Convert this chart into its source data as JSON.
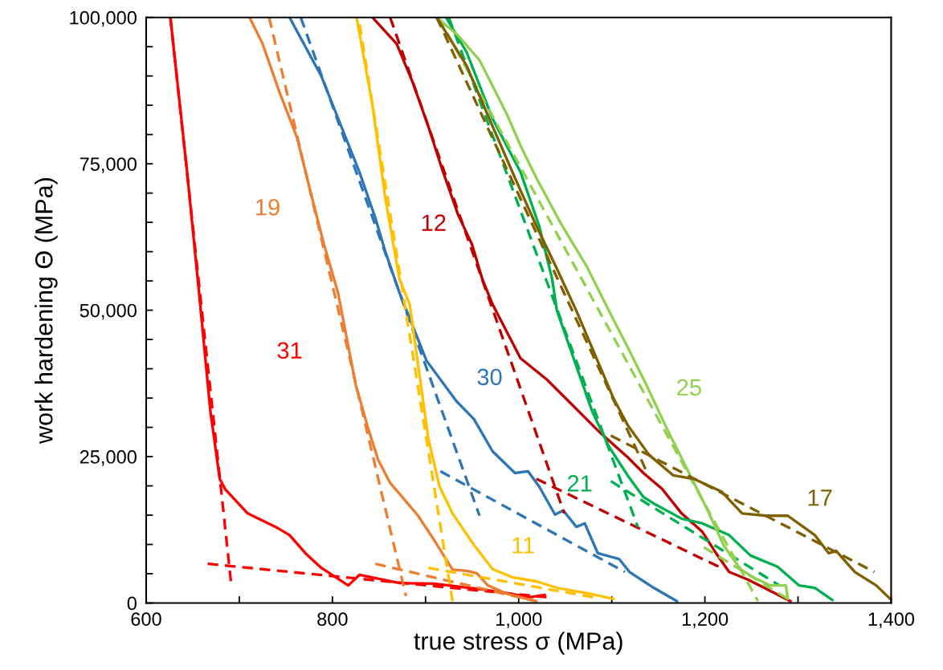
{
  "chart_data": {
    "type": "line",
    "xlabel": "true stress σ (MPa)",
    "ylabel": "work hardening Θ (MPa)",
    "xlim": [
      600,
      1400
    ],
    "ylim": [
      0,
      100000
    ],
    "xticks": [
      600,
      {
        "value": 700,
        "label": null
      },
      800,
      {
        "value": 900,
        "label": null
      },
      {
        "value": 1000,
        "label": "1,000"
      },
      {
        "value": 1100,
        "label": null
      },
      {
        "value": 1200,
        "label": "1,200"
      },
      {
        "value": 1300,
        "label": null
      },
      {
        "value": 1400,
        "label": "1,400"
      }
    ],
    "yticks": [
      0,
      {
        "value": 5000,
        "label": null
      },
      {
        "value": 10000,
        "label": null
      },
      {
        "value": 15000,
        "label": null
      },
      {
        "value": 20000,
        "label": null
      },
      {
        "value": 25000,
        "label": "25,000"
      },
      {
        "value": 30000,
        "label": null
      },
      {
        "value": 35000,
        "label": null
      },
      {
        "value": 40000,
        "label": null
      },
      {
        "value": 45000,
        "label": null
      },
      {
        "value": 50000,
        "label": "50,000"
      },
      {
        "value": 55000,
        "label": null
      },
      {
        "value": 60000,
        "label": null
      },
      {
        "value": 65000,
        "label": null
      },
      {
        "value": 70000,
        "label": null
      },
      {
        "value": 75000,
        "label": "75,000"
      },
      {
        "value": 80000,
        "label": null
      },
      {
        "value": 85000,
        "label": null
      },
      {
        "value": 90000,
        "label": null
      },
      {
        "value": 95000,
        "label": null
      },
      {
        "value": 100000,
        "label": "100,000"
      }
    ],
    "grid": false,
    "marker": "none",
    "series": [
      {
        "name": "31",
        "color": "#ff0000",
        "line_style": "solid",
        "x": [
          626,
          644,
          658,
          669,
          679,
          685,
          709,
          739,
          754,
          771,
          788,
          817,
          829,
          872,
          909,
          961,
          1013,
          1028
        ],
        "values": [
          100000,
          73600,
          51000,
          32700,
          21200,
          19400,
          15300,
          13000,
          11600,
          8500,
          6000,
          3000,
          4800,
          3400,
          3300,
          2300,
          1000,
          1400
        ]
      },
      {
        "color": "#ff0000",
        "line_style": "dashed",
        "x": [
          626,
          691
        ],
        "values": [
          100000,
          3700
        ]
      },
      {
        "color": "#ff0000",
        "line_style": "dashed",
        "x": [
          666,
          1030
        ],
        "values": [
          6700,
          1000
        ]
      },
      {
        "name": "19",
        "color": "#ed7d31",
        "line_style": "solid",
        "x": [
          711,
          725,
          743,
          762,
          777,
          791,
          806,
          825,
          838,
          849,
          862,
          875,
          892,
          909,
          929,
          944,
          955,
          967,
          987,
          1019
        ],
        "values": [
          100000,
          95500,
          87300,
          79500,
          69900,
          61200,
          53000,
          37300,
          30000,
          24500,
          20500,
          18100,
          14900,
          10800,
          5700,
          5500,
          5100,
          3000,
          1600,
          300
        ]
      },
      {
        "color": "#ed7d31",
        "line_style": "dashed",
        "x": [
          732,
          879
        ],
        "values": [
          100000,
          1200
        ]
      },
      {
        "color": "#ed7d31",
        "line_style": "dashed",
        "x": [
          846,
          1019
        ],
        "values": [
          6700,
          300
        ]
      },
      {
        "name": "30",
        "color": "#2e75b6",
        "line_style": "solid",
        "x": [
          754,
          788,
          812,
          829,
          846,
          857,
          872,
          877,
          901,
          933,
          952,
          972,
          996,
          1010,
          1022,
          1039,
          1048,
          1062,
          1071,
          1085,
          1108,
          1119,
          1145,
          1170
        ],
        "values": [
          100000,
          90000,
          80400,
          73600,
          65800,
          59900,
          53000,
          51000,
          41400,
          34500,
          31400,
          25900,
          22200,
          22500,
          19900,
          15100,
          15800,
          13000,
          13600,
          8500,
          7500,
          5300,
          2600,
          300
        ]
      },
      {
        "color": "#2e75b6",
        "line_style": "dashed",
        "x": [
          766,
          958
        ],
        "values": [
          100000,
          14900
        ]
      },
      {
        "color": "#2e75b6",
        "line_style": "dashed",
        "x": [
          916,
          1114
        ],
        "values": [
          22500,
          5300
        ]
      },
      {
        "name": "11",
        "color": "#ffc000",
        "line_style": "solid",
        "x": [
          826,
          843,
          857,
          872,
          883,
          895,
          903,
          915,
          929,
          952,
          972,
          993,
          1019,
          1041,
          1076,
          1102
        ],
        "values": [
          100000,
          85000,
          69000,
          55300,
          51000,
          37300,
          28100,
          19900,
          15300,
          9900,
          5800,
          4400,
          3700,
          2600,
          1600,
          700
        ]
      },
      {
        "color": "#ffc000",
        "line_style": "dashed",
        "x": [
          929,
          828
        ],
        "values": [
          300,
          100000
        ]
      },
      {
        "color": "#ffc000",
        "line_style": "dashed",
        "x": [
          903,
          1080
        ],
        "values": [
          6000,
          1000
        ]
      },
      {
        "name": "12",
        "color": "#c00000",
        "line_style": "solid",
        "x": [
          843,
          869,
          886,
          903,
          918,
          935,
          950,
          961,
          972,
          1002,
          1030,
          1059,
          1088,
          1117,
          1134,
          1154,
          1175,
          1197,
          1212,
          1226,
          1246,
          1270,
          1292
        ],
        "values": [
          100000,
          95500,
          89000,
          81400,
          74000,
          66300,
          61200,
          55300,
          51000,
          41800,
          38200,
          33600,
          29000,
          24900,
          22200,
          19500,
          15300,
          12200,
          8500,
          5300,
          4000,
          2100,
          300
        ]
      },
      {
        "color": "#c00000",
        "line_style": "dashed",
        "x": [
          862,
          1049
        ],
        "values": [
          100000,
          15300
        ]
      },
      {
        "color": "#c00000",
        "line_style": "dashed",
        "x": [
          1019,
          1220
        ],
        "values": [
          21200,
          5800
        ]
      },
      {
        "name": "21",
        "color": "#00b050",
        "line_style": "solid",
        "x": [
          922,
          944,
          972,
          1002,
          1022,
          1036,
          1041,
          1059,
          1079,
          1097,
          1117,
          1134,
          1145,
          1175,
          1197,
          1226,
          1249,
          1278,
          1301,
          1318,
          1337
        ],
        "values": [
          100000,
          94100,
          82700,
          73600,
          64400,
          55300,
          50000,
          41800,
          32700,
          26700,
          21800,
          18100,
          17000,
          14400,
          13600,
          11600,
          8100,
          6200,
          3000,
          2600,
          500
        ]
      },
      {
        "color": "#00b050",
        "line_style": "dashed",
        "x": [
          925,
          1128
        ],
        "values": [
          100000,
          13000
        ]
      },
      {
        "color": "#00b050",
        "line_style": "dashed",
        "x": [
          1099,
          1280
        ],
        "values": [
          20800,
          3000
        ]
      },
      {
        "name": "25",
        "color": "#92d050",
        "line_style": "solid",
        "x": [
          912,
          935,
          958,
          987,
          1002,
          1019,
          1045,
          1073,
          1097,
          1117,
          1137,
          1160,
          1183,
          1203,
          1220,
          1238,
          1252,
          1270,
          1287,
          1289
        ],
        "values": [
          100000,
          96900,
          92700,
          83600,
          78100,
          72600,
          64900,
          57500,
          49900,
          43700,
          37300,
          29500,
          22200,
          15800,
          9900,
          5800,
          4400,
          3000,
          3000,
          700
        ]
      },
      {
        "color": "#92d050",
        "line_style": "dashed",
        "x": [
          914,
          1257
        ],
        "values": [
          100000,
          300
        ]
      },
      {
        "color": "#92d050",
        "line_style": "dashed",
        "x": [
          1199,
          1289
        ],
        "values": [
          9500,
          700
        ]
      },
      {
        "name": "17",
        "color": "#7f6000",
        "line_style": "solid",
        "x": [
          912,
          944,
          972,
          996,
          1019,
          1041,
          1062,
          1102,
          1117,
          1140,
          1166,
          1188,
          1218,
          1240,
          1266,
          1289,
          1318,
          1333,
          1341,
          1361,
          1384,
          1399
        ],
        "values": [
          100000,
          91800,
          81400,
          72600,
          64400,
          57100,
          49900,
          34900,
          30400,
          25300,
          21800,
          21200,
          19000,
          15300,
          14900,
          14900,
          11600,
          8500,
          8900,
          5300,
          3000,
          700
        ]
      },
      {
        "color": "#7f6000",
        "line_style": "dashed",
        "x": [
          912,
          1137
        ],
        "values": [
          100000,
          22600
        ]
      },
      {
        "color": "#7f6000",
        "line_style": "dashed",
        "x": [
          1099,
          1382
        ],
        "values": [
          28600,
          5300
        ]
      }
    ]
  }
}
